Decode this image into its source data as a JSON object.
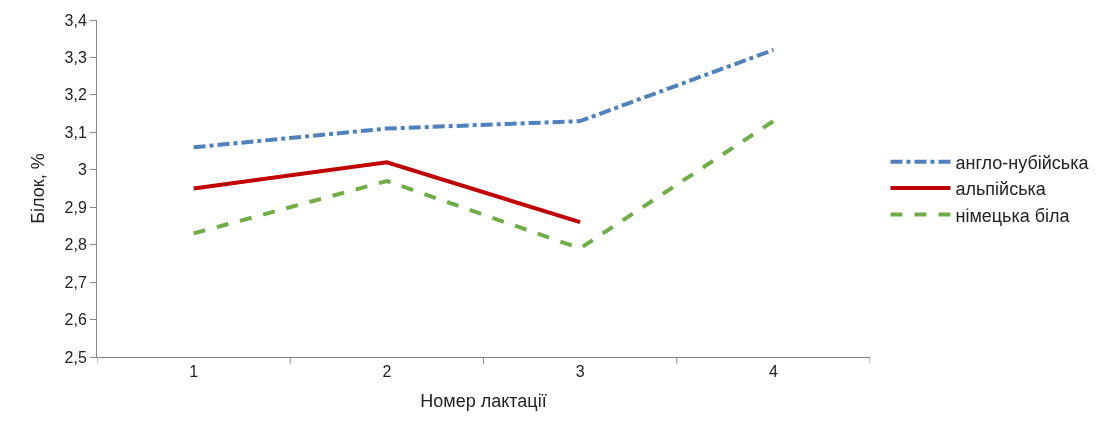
{
  "chart_data": {
    "type": "line",
    "xlabel": "Номер лактації",
    "ylabel": "Білок, %",
    "categories": [
      "1",
      "2",
      "3",
      "4"
    ],
    "series": [
      {
        "name": "англо-нубійська",
        "color": "#4f81bd",
        "values": [
          3.06,
          3.11,
          3.13,
          3.32
        ],
        "line_style": "dashdot"
      },
      {
        "name": "альпійська",
        "color": "#c00000",
        "values": [
          2.95,
          3.02,
          2.86,
          null
        ],
        "line_style": "solid"
      },
      {
        "name": "німецька біла",
        "color": "#70ad47",
        "values": [
          2.83,
          2.97,
          2.79,
          3.13
        ],
        "line_style": "dashed"
      }
    ],
    "ylim": [
      2.5,
      3.4
    ],
    "yticks": [
      {
        "value": 2.5,
        "label": "2,5"
      },
      {
        "value": 2.6,
        "label": "2,6"
      },
      {
        "value": 2.7,
        "label": "2,7"
      },
      {
        "value": 2.8,
        "label": "2,8"
      },
      {
        "value": 2.9,
        "label": "2,9"
      },
      {
        "value": 3,
        "label": "3"
      },
      {
        "value": 3.1,
        "label": "3,1"
      },
      {
        "value": 3.2,
        "label": "3,2"
      },
      {
        "value": 3.3,
        "label": "3,3"
      },
      {
        "value": 3.4,
        "label": "3,4"
      }
    ],
    "legend": "right",
    "marker": "none"
  }
}
